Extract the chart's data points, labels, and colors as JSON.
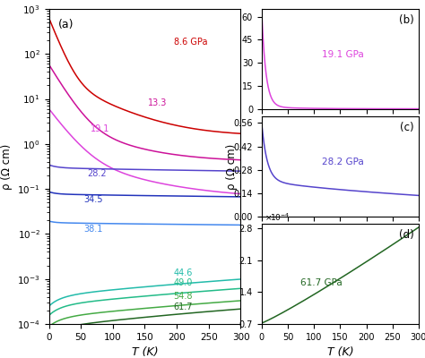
{
  "panel_a_label": "(a)",
  "panel_b_label": "(b)",
  "panel_c_label": "(c)",
  "panel_d_label": "(d)",
  "xlabel": "T (K)",
  "ylabel_log": "ρ (Ω cm)",
  "ylabel_lin": "ρ (Ω cm)",
  "colors_a": [
    "#cc0000",
    "#cc1199",
    "#dd44dd",
    "#5544cc",
    "#2233bb",
    "#4488ee",
    "#22bbaa",
    "#22bb88",
    "#44aa44",
    "#226622"
  ],
  "labels_a": [
    "8.6 GPa",
    "13.3",
    "19.1",
    "28.2",
    "34.5",
    "38.1",
    "44.6",
    "49.0",
    "54.8",
    "61.7"
  ],
  "label_tx": [
    195,
    155,
    65,
    60,
    55,
    55,
    195,
    195,
    195,
    195
  ],
  "label_ty": [
    180,
    8.0,
    2.2,
    0.22,
    0.058,
    0.013,
    0.00135,
    0.00082,
    0.00042,
    0.00024
  ],
  "color_b": "#dd44dd",
  "color_c": "#5544cc",
  "color_d": "#226622",
  "b_ylim": [
    0,
    65
  ],
  "b_yticks": [
    0,
    15,
    30,
    45,
    60
  ],
  "c_ylim": [
    0.0,
    0.6
  ],
  "c_yticks": [
    0.0,
    0.14,
    0.28,
    0.42,
    0.56
  ],
  "d_ylim": [
    7e-05,
    0.00029
  ],
  "d_yticks": [
    7e-05,
    0.00014,
    0.00021,
    0.00028
  ]
}
